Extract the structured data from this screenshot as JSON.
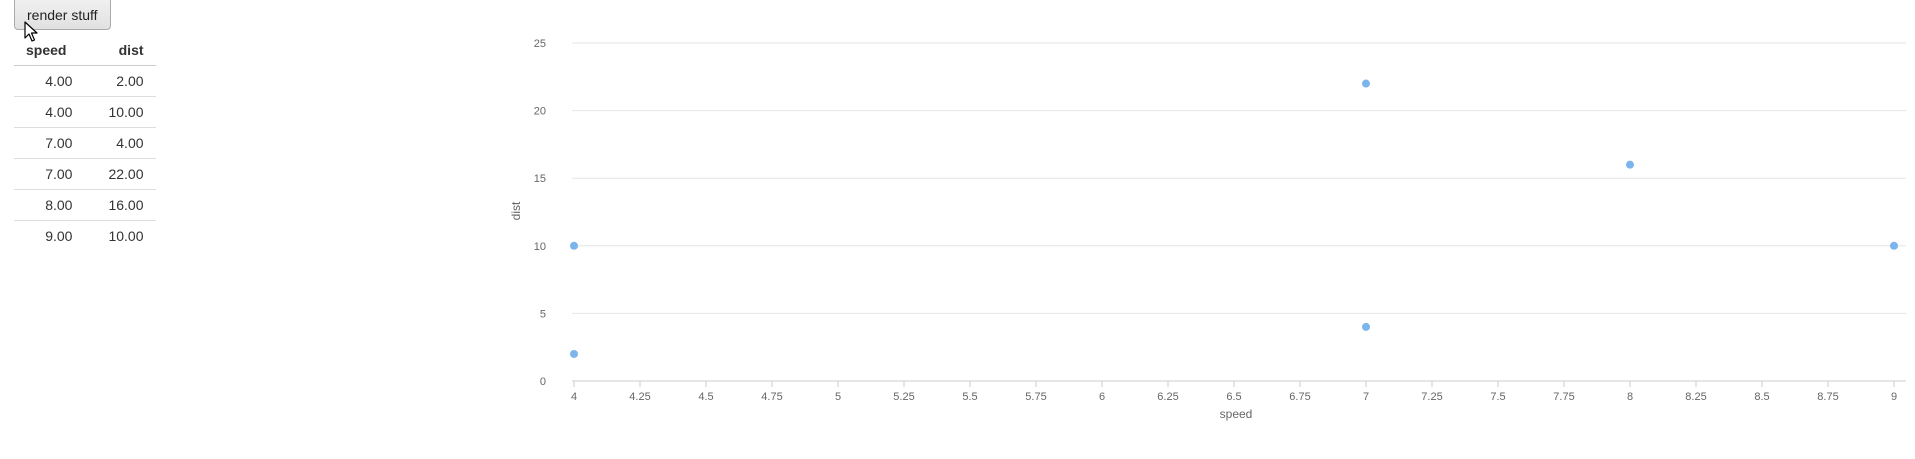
{
  "button": {
    "label": "render stuff"
  },
  "table": {
    "columns": [
      "speed",
      "dist"
    ],
    "rows": [
      [
        "4.00",
        "2.00"
      ],
      [
        "4.00",
        "10.00"
      ],
      [
        "7.00",
        "4.00"
      ],
      [
        "7.00",
        "22.00"
      ],
      [
        "8.00",
        "16.00"
      ],
      [
        "9.00",
        "10.00"
      ]
    ]
  },
  "chart_data": {
    "type": "scatter",
    "xlabel": "speed",
    "ylabel": "dist",
    "xlim": [
      4,
      9
    ],
    "ylim": [
      0,
      25
    ],
    "x_ticks": [
      "4",
      "4.25",
      "4.5",
      "4.75",
      "5",
      "5.25",
      "5.5",
      "5.75",
      "6",
      "6.25",
      "6.5",
      "6.75",
      "7",
      "7.25",
      "7.5",
      "7.75",
      "8",
      "8.25",
      "8.5",
      "8.75",
      "9"
    ],
    "y_ticks": [
      "0",
      "5",
      "10",
      "15",
      "20",
      "25"
    ],
    "grid": "horizontal",
    "point_color": "#7cb5ec",
    "points": [
      {
        "x": 4,
        "y": 2
      },
      {
        "x": 4,
        "y": 10
      },
      {
        "x": 7,
        "y": 4
      },
      {
        "x": 7,
        "y": 22
      },
      {
        "x": 8,
        "y": 16
      },
      {
        "x": 9,
        "y": 10
      }
    ]
  }
}
